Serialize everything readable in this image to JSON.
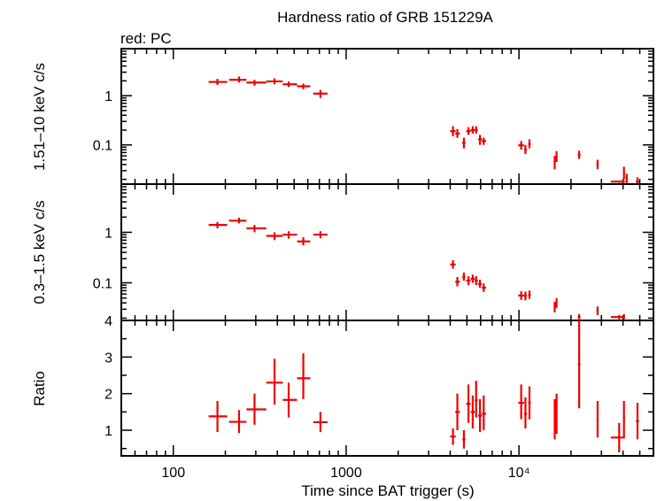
{
  "chart_data": {
    "type": "scatter",
    "title": "Hardness ratio of GRB 151229A",
    "annotation": "red: PC",
    "xlabel": "Time since BAT trigger (s)",
    "x_scale": "log",
    "xlim": [
      50,
      60000
    ],
    "x_ticks": [
      100,
      1000,
      10000
    ],
    "x_ticklabels": [
      "100",
      "1000",
      "10⁴"
    ],
    "color": "#ee0000",
    "panels": [
      {
        "name": "hard",
        "ylabel": "1.51–10 keV c/s",
        "y_scale": "log",
        "ylim": [
          0.016,
          9
        ],
        "y_ticks": [
          1,
          0.1
        ],
        "y_ticklabels": [
          "1",
          "0.1"
        ],
        "points": [
          {
            "x": 180,
            "xerr": [
              160,
              205
            ],
            "y": 1.9,
            "yerr": [
              1.65,
              2.2
            ]
          },
          {
            "x": 240,
            "xerr": [
              210,
              265
            ],
            "y": 2.1,
            "yerr": [
              1.85,
              2.45
            ]
          },
          {
            "x": 295,
            "xerr": [
              265,
              345
            ],
            "y": 1.85,
            "yerr": [
              1.6,
              2.1
            ]
          },
          {
            "x": 385,
            "xerr": [
              345,
              430
            ],
            "y": 1.95,
            "yerr": [
              1.7,
              2.25
            ]
          },
          {
            "x": 465,
            "xerr": [
              430,
              520
            ],
            "y": 1.7,
            "yerr": [
              1.5,
              1.95
            ]
          },
          {
            "x": 565,
            "xerr": [
              520,
              620
            ],
            "y": 1.55,
            "yerr": [
              1.35,
              1.75
            ]
          },
          {
            "x": 710,
            "xerr": [
              645,
              780
            ],
            "y": 1.1,
            "yerr": [
              0.9,
              1.3
            ]
          },
          {
            "x": 4150,
            "xerr": [
              4000,
              4300
            ],
            "y": 0.19,
            "yerr": [
              0.15,
              0.24
            ]
          },
          {
            "x": 4400,
            "xerr": [
              4280,
              4550
            ],
            "y": 0.17,
            "yerr": [
              0.14,
              0.21
            ]
          },
          {
            "x": 4800,
            "xerr": [
              4700,
              4900
            ],
            "y": 0.11,
            "yerr": [
              0.085,
              0.14
            ]
          },
          {
            "x": 5100,
            "xerr": [
              4950,
              5250
            ],
            "y": 0.19,
            "yerr": [
              0.16,
              0.23
            ]
          },
          {
            "x": 5400,
            "xerr": [
              5250,
              5550
            ],
            "y": 0.2,
            "yerr": [
              0.17,
              0.24
            ]
          },
          {
            "x": 5650,
            "xerr": [
              5550,
              5780
            ],
            "y": 0.2,
            "yerr": [
              0.17,
              0.24
            ]
          },
          {
            "x": 5950,
            "xerr": [
              5800,
              6100
            ],
            "y": 0.13,
            "yerr": [
              0.1,
              0.16
            ]
          },
          {
            "x": 6250,
            "xerr": [
              6100,
              6450
            ],
            "y": 0.12,
            "yerr": [
              0.1,
              0.14
            ]
          },
          {
            "x": 10300,
            "xerr": [
              9900,
              10700
            ],
            "y": 0.098,
            "yerr": [
              0.08,
              0.12
            ]
          },
          {
            "x": 10900,
            "xerr": [
              10700,
              11100
            ],
            "y": 0.08,
            "yerr": [
              0.065,
              0.1
            ]
          },
          {
            "x": 11500,
            "xerr": [
              11300,
              11700
            ],
            "y": 0.105,
            "yerr": [
              0.085,
              0.13
            ]
          },
          {
            "x": 16100,
            "xerr": [
              15950,
              16250
            ],
            "y": 0.044,
            "yerr": [
              0.032,
              0.06
            ]
          },
          {
            "x": 16500,
            "xerr": [
              16350,
              16650
            ],
            "y": 0.058,
            "yerr": [
              0.045,
              0.075
            ]
          },
          {
            "x": 22300,
            "xerr": [
              21900,
              22700
            ],
            "y": 0.063,
            "yerr": [
              0.052,
              0.076
            ]
          },
          {
            "x": 28500,
            "xerr": [
              28100,
              28900
            ],
            "y": 0.04,
            "yerr": [
              0.032,
              0.05
            ]
          },
          {
            "x": 38000,
            "xerr": [
              34000,
              41000
            ],
            "y": 0.018,
            "yerr": [
              0.017,
              0.019
            ]
          },
          {
            "x": 40500,
            "xerr": [
              40100,
              41000
            ],
            "y": 0.027,
            "yerr": [
              0.02,
              0.036
            ]
          },
          {
            "x": 42000,
            "xerr": [
              41500,
              42500
            ],
            "y": 0.02,
            "yerr": [
              0.016,
              0.026
            ]
          },
          {
            "x": 48500,
            "xerr": [
              47500,
              49500
            ],
            "y": 0.018,
            "yerr": [
              0.016,
              0.022
            ]
          }
        ]
      },
      {
        "name": "soft",
        "ylabel": "0.3–1.5 keV c/s",
        "y_scale": "log",
        "ylim": [
          0.018,
          9
        ],
        "y_ticks": [
          1,
          0.1
        ],
        "y_ticklabels": [
          "1",
          "0.1"
        ],
        "points": [
          {
            "x": 180,
            "xerr": [
              160,
              205
            ],
            "y": 1.4,
            "yerr": [
              1.2,
              1.6
            ]
          },
          {
            "x": 240,
            "xerr": [
              210,
              265
            ],
            "y": 1.7,
            "yerr": [
              1.5,
              1.95
            ]
          },
          {
            "x": 295,
            "xerr": [
              265,
              345
            ],
            "y": 1.2,
            "yerr": [
              1.0,
              1.4
            ]
          },
          {
            "x": 385,
            "xerr": [
              345,
              430
            ],
            "y": 0.85,
            "yerr": [
              0.7,
              1.0
            ]
          },
          {
            "x": 465,
            "xerr": [
              430,
              520
            ],
            "y": 0.9,
            "yerr": [
              0.75,
              1.05
            ]
          },
          {
            "x": 565,
            "xerr": [
              520,
              620
            ],
            "y": 0.66,
            "yerr": [
              0.55,
              0.8
            ]
          },
          {
            "x": 710,
            "xerr": [
              645,
              780
            ],
            "y": 0.9,
            "yerr": [
              0.76,
              1.05
            ]
          },
          {
            "x": 4150,
            "xerr": [
              4000,
              4300
            ],
            "y": 0.23,
            "yerr": [
              0.19,
              0.28
            ]
          },
          {
            "x": 4400,
            "xerr": [
              4280,
              4550
            ],
            "y": 0.105,
            "yerr": [
              0.085,
              0.13
            ]
          },
          {
            "x": 4800,
            "xerr": [
              4700,
              4900
            ],
            "y": 0.13,
            "yerr": [
              0.11,
              0.16
            ]
          },
          {
            "x": 5100,
            "xerr": [
              4950,
              5250
            ],
            "y": 0.11,
            "yerr": [
              0.09,
              0.135
            ]
          },
          {
            "x": 5400,
            "xerr": [
              5250,
              5550
            ],
            "y": 0.12,
            "yerr": [
              0.1,
              0.145
            ]
          },
          {
            "x": 5650,
            "xerr": [
              5550,
              5780
            ],
            "y": 0.11,
            "yerr": [
              0.09,
              0.135
            ]
          },
          {
            "x": 5950,
            "xerr": [
              5800,
              6100
            ],
            "y": 0.095,
            "yerr": [
              0.08,
              0.115
            ]
          },
          {
            "x": 6250,
            "xerr": [
              6100,
              6450
            ],
            "y": 0.08,
            "yerr": [
              0.066,
              0.097
            ]
          },
          {
            "x": 10300,
            "xerr": [
              9900,
              10700
            ],
            "y": 0.056,
            "yerr": [
              0.046,
              0.068
            ]
          },
          {
            "x": 10900,
            "xerr": [
              10700,
              11100
            ],
            "y": 0.055,
            "yerr": [
              0.045,
              0.067
            ]
          },
          {
            "x": 11500,
            "xerr": [
              11300,
              11700
            ],
            "y": 0.058,
            "yerr": [
              0.048,
              0.07
            ]
          },
          {
            "x": 16100,
            "xerr": [
              15950,
              16250
            ],
            "y": 0.033,
            "yerr": [
              0.026,
              0.042
            ]
          },
          {
            "x": 16500,
            "xerr": [
              16350,
              16650
            ],
            "y": 0.04,
            "yerr": [
              0.032,
              0.05
            ]
          },
          {
            "x": 22300,
            "xerr": [
              21900,
              22700
            ],
            "y": 0.021,
            "yerr": [
              0.019,
              0.024
            ]
          },
          {
            "x": 28500,
            "xerr": [
              28100,
              28900
            ],
            "y": 0.028,
            "yerr": [
              0.023,
              0.034
            ]
          },
          {
            "x": 38000,
            "xerr": [
              34000,
              41000
            ],
            "y": 0.021,
            "yerr": [
              0.019,
              0.023
            ]
          },
          {
            "x": 40500,
            "xerr": [
              40100,
              41000
            ],
            "y": 0.021,
            "yerr": [
              0.019,
              0.024
            ]
          }
        ]
      },
      {
        "name": "ratio",
        "ylabel": "Ratio",
        "y_scale": "linear",
        "ylim": [
          0.3,
          4
        ],
        "y_ticks": [
          4,
          3,
          2,
          1
        ],
        "y_ticklabels": [
          "4",
          "3",
          "2",
          "1"
        ],
        "points": [
          {
            "x": 180,
            "xerr": [
              160,
              205
            ],
            "y": 1.38,
            "yerr": [
              0.95,
              1.8
            ]
          },
          {
            "x": 240,
            "xerr": [
              210,
              265
            ],
            "y": 1.23,
            "yerr": [
              0.92,
              1.55
            ]
          },
          {
            "x": 295,
            "xerr": [
              265,
              345
            ],
            "y": 1.57,
            "yerr": [
              1.15,
              2.0
            ]
          },
          {
            "x": 385,
            "xerr": [
              345,
              430
            ],
            "y": 2.3,
            "yerr": [
              1.7,
              2.95
            ]
          },
          {
            "x": 465,
            "xerr": [
              430,
              520
            ],
            "y": 1.83,
            "yerr": [
              1.35,
              2.3
            ]
          },
          {
            "x": 565,
            "xerr": [
              520,
              620
            ],
            "y": 2.42,
            "yerr": [
              1.85,
              3.1
            ]
          },
          {
            "x": 710,
            "xerr": [
              645,
              780
            ],
            "y": 1.22,
            "yerr": [
              0.95,
              1.5
            ]
          },
          {
            "x": 4150,
            "xerr": [
              4000,
              4300
            ],
            "y": 0.83,
            "yerr": [
              0.6,
              1.05
            ]
          },
          {
            "x": 4400,
            "xerr": [
              4280,
              4550
            ],
            "y": 1.5,
            "yerr": [
              1.0,
              2.0
            ]
          },
          {
            "x": 4800,
            "xerr": [
              4700,
              4900
            ],
            "y": 0.75,
            "yerr": [
              0.5,
              1.0
            ]
          },
          {
            "x": 5100,
            "xerr": [
              4950,
              5250
            ],
            "y": 1.72,
            "yerr": [
              1.2,
              2.25
            ]
          },
          {
            "x": 5400,
            "xerr": [
              5250,
              5550
            ],
            "y": 1.5,
            "yerr": [
              1.05,
              1.95
            ]
          },
          {
            "x": 5650,
            "xerr": [
              5550,
              5780
            ],
            "y": 1.82,
            "yerr": [
              1.35,
              2.35
            ]
          },
          {
            "x": 5950,
            "xerr": [
              5800,
              6100
            ],
            "y": 1.4,
            "yerr": [
              0.95,
              1.85
            ]
          },
          {
            "x": 6250,
            "xerr": [
              6100,
              6450
            ],
            "y": 1.45,
            "yerr": [
              1.0,
              1.95
            ]
          },
          {
            "x": 10300,
            "xerr": [
              9900,
              10700
            ],
            "y": 1.75,
            "yerr": [
              1.3,
              2.25
            ]
          },
          {
            "x": 10900,
            "xerr": [
              10700,
              11100
            ],
            "y": 1.45,
            "yerr": [
              1.05,
              1.9
            ]
          },
          {
            "x": 11500,
            "xerr": [
              11300,
              11700
            ],
            "y": 1.75,
            "yerr": [
              1.3,
              2.2
            ]
          },
          {
            "x": 16100,
            "xerr": [
              15950,
              16250
            ],
            "y": 1.3,
            "yerr": [
              0.75,
              1.85
            ]
          },
          {
            "x": 16500,
            "xerr": [
              16350,
              16650
            ],
            "y": 1.45,
            "yerr": [
              0.9,
              2.0
            ]
          },
          {
            "x": 22300,
            "xerr": [
              21900,
              22700
            ],
            "y": 2.8,
            "yerr": [
              1.6,
              4.0
            ]
          },
          {
            "x": 28500,
            "xerr": [
              28100,
              28900
            ],
            "y": 1.3,
            "yerr": [
              0.8,
              1.8
            ]
          },
          {
            "x": 38000,
            "xerr": [
              34000,
              41000
            ],
            "y": 0.8,
            "yerr": [
              0.4,
              1.2
            ]
          },
          {
            "x": 40500,
            "xerr": [
              40100,
              41000
            ],
            "y": 1.35,
            "yerr": [
              0.8,
              1.8
            ]
          },
          {
            "x": 48500,
            "xerr": [
              47500,
              49500
            ],
            "y": 1.25,
            "yerr": [
              0.75,
              1.75
            ]
          }
        ]
      }
    ]
  }
}
